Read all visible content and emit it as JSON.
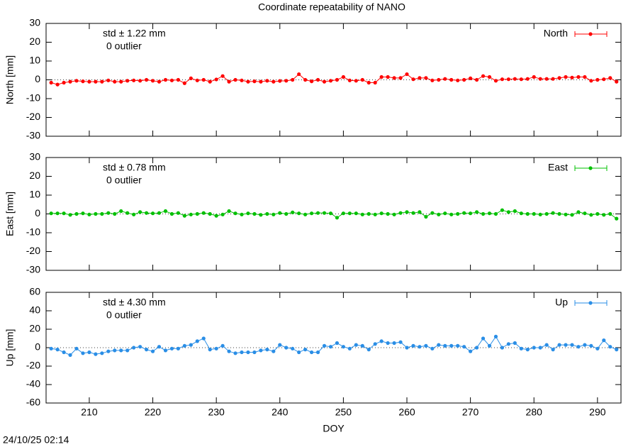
{
  "title": "Coordinate repeatability of NANO",
  "timestamp": "24/10/25 02:14",
  "chart_data": [
    {
      "type": "line",
      "ylabel": "North [mm]",
      "annotations": [
        "std ± 1.22 mm",
        "0 outlier"
      ],
      "x": [
        204,
        205,
        206,
        207,
        208,
        209,
        210,
        211,
        212,
        213,
        214,
        215,
        216,
        217,
        218,
        219,
        220,
        221,
        222,
        223,
        224,
        225,
        226,
        227,
        228,
        229,
        230,
        231,
        232,
        233,
        234,
        235,
        236,
        237,
        238,
        239,
        240,
        241,
        242,
        243,
        244,
        245,
        246,
        247,
        248,
        249,
        250,
        251,
        252,
        253,
        254,
        255,
        256,
        257,
        258,
        259,
        260,
        261,
        262,
        263,
        264,
        265,
        266,
        267,
        268,
        269,
        270,
        271,
        272,
        273,
        274,
        275,
        276,
        277,
        278,
        279,
        280,
        281,
        282,
        283,
        284,
        285,
        286,
        287,
        288,
        289,
        290,
        291,
        292,
        293
      ],
      "series": [
        {
          "name": "North",
          "color": "#ff0000",
          "values": [
            -1.5,
            -2.5,
            -1.5,
            -1,
            -0.5,
            -0.8,
            -1,
            -1,
            -1,
            -0.3,
            -1,
            -1,
            -0.5,
            -0.3,
            -0.5,
            0,
            -0.5,
            -1,
            0,
            -0.3,
            0,
            -1.8,
            0.8,
            -0.3,
            0,
            -1,
            0.2,
            2,
            -1,
            0,
            -0.3,
            -1,
            -0.8,
            -1,
            -0.5,
            -1,
            -0.6,
            -0.5,
            0,
            3,
            0,
            -0.8,
            0,
            -1,
            -0.5,
            0,
            1.5,
            -0.3,
            -0.5,
            0,
            -1.5,
            -1.5,
            1.5,
            1.5,
            1,
            1,
            3,
            0.3,
            1,
            1,
            -0.3,
            0,
            0.5,
            0,
            -0.3,
            0,
            0.8,
            0,
            2,
            1.5,
            -0.5,
            0.3,
            0.3,
            0.5,
            0.3,
            0.5,
            1.5,
            0.5,
            0.5,
            0.5,
            1,
            1.5,
            1.2,
            1.5,
            1.5,
            -0.5,
            0,
            0.3,
            1,
            -1
          ]
        }
      ],
      "xlim": [
        203.2,
        293.7
      ],
      "xticks": [
        210,
        220,
        230,
        240,
        250,
        260,
        270,
        280,
        290
      ],
      "ylim": [
        -30,
        30
      ],
      "yticks": [
        -30,
        -20,
        -10,
        0,
        10,
        20,
        30
      ]
    },
    {
      "type": "line",
      "ylabel": "East [mm]",
      "annotations": [
        "std ± 0.78 mm",
        "0 outlier"
      ],
      "x": [
        204,
        205,
        206,
        207,
        208,
        209,
        210,
        211,
        212,
        213,
        214,
        215,
        216,
        217,
        218,
        219,
        220,
        221,
        222,
        223,
        224,
        225,
        226,
        227,
        228,
        229,
        230,
        231,
        232,
        233,
        234,
        235,
        236,
        237,
        238,
        239,
        240,
        241,
        242,
        243,
        244,
        245,
        246,
        247,
        248,
        249,
        250,
        251,
        252,
        253,
        254,
        255,
        256,
        257,
        258,
        259,
        260,
        261,
        262,
        263,
        264,
        265,
        266,
        267,
        268,
        269,
        270,
        271,
        272,
        273,
        274,
        275,
        276,
        277,
        278,
        279,
        280,
        281,
        282,
        283,
        284,
        285,
        286,
        287,
        288,
        289,
        290,
        291,
        292,
        293
      ],
      "series": [
        {
          "name": "East",
          "color": "#00c000",
          "values": [
            0.3,
            0.3,
            0.3,
            -0.5,
            0,
            0.3,
            -0.3,
            0,
            0,
            0.5,
            0,
            1.5,
            0.5,
            -0.3,
            1,
            0.5,
            0.3,
            0.5,
            1.5,
            0,
            0.5,
            -1,
            -0.3,
            0,
            0.5,
            0,
            -1,
            -0.3,
            1.5,
            0.3,
            -0.3,
            0.3,
            0,
            -0.5,
            0,
            -0.3,
            0.5,
            0,
            0.8,
            0.3,
            -0.3,
            0.3,
            0.5,
            0.5,
            0.3,
            -2,
            0.3,
            0.3,
            0.3,
            -0.3,
            0,
            -0.3,
            0.3,
            0,
            -0.3,
            0.5,
            1,
            0.5,
            1,
            -1.5,
            0.5,
            -0.3,
            0.3,
            -0.3,
            0,
            0.5,
            0.3,
            1,
            0,
            0.3,
            0,
            2,
            1,
            1.5,
            0.3,
            0,
            0,
            -0.3,
            0,
            0.5,
            0,
            -0.3,
            -0.5,
            1,
            0.3,
            -0.5,
            0,
            -0.5,
            0,
            -2.5
          ]
        }
      ],
      "xlim": [
        203.2,
        293.7
      ],
      "xticks": [
        210,
        220,
        230,
        240,
        250,
        260,
        270,
        280,
        290
      ],
      "ylim": [
        -30,
        30
      ],
      "yticks": [
        -30,
        -20,
        -10,
        0,
        10,
        20,
        30
      ]
    },
    {
      "type": "line",
      "ylabel": "Up [mm]",
      "xlabel": "DOY",
      "annotations": [
        "std ± 4.30 mm",
        "0 outlier"
      ],
      "x": [
        204,
        205,
        206,
        207,
        208,
        209,
        210,
        211,
        212,
        213,
        214,
        215,
        216,
        217,
        218,
        219,
        220,
        221,
        222,
        223,
        224,
        225,
        226,
        227,
        228,
        229,
        230,
        231,
        232,
        233,
        234,
        235,
        236,
        237,
        238,
        239,
        240,
        241,
        242,
        243,
        244,
        245,
        246,
        247,
        248,
        249,
        250,
        251,
        252,
        253,
        254,
        255,
        256,
        257,
        258,
        259,
        260,
        261,
        262,
        263,
        264,
        265,
        266,
        267,
        268,
        269,
        270,
        271,
        272,
        273,
        274,
        275,
        276,
        277,
        278,
        279,
        280,
        281,
        282,
        283,
        284,
        285,
        286,
        287,
        288,
        289,
        290,
        291,
        292,
        293
      ],
      "series": [
        {
          "name": "Up",
          "color": "#2a8ee6",
          "values": [
            -1,
            -2,
            -5,
            -8,
            -1,
            -6,
            -5,
            -7,
            -6,
            -4,
            -3,
            -3,
            -3,
            0,
            1,
            -2,
            -4,
            1,
            -3,
            -1,
            -1,
            2,
            3,
            7,
            10,
            -2,
            -1,
            2,
            -4,
            -6,
            -5,
            -5,
            -5,
            -3,
            -2,
            -4,
            3,
            0,
            -1,
            -5,
            -2,
            -5,
            -5,
            2,
            1,
            5,
            1,
            -1,
            3,
            2,
            -2,
            4,
            7,
            5,
            5,
            6,
            0,
            2,
            1,
            2,
            -1,
            3,
            2,
            2,
            2,
            1,
            -4,
            0,
            10,
            2,
            12,
            0,
            4,
            5,
            -1,
            -2,
            0,
            0,
            3,
            -2,
            3,
            3,
            3,
            1,
            3,
            2,
            -1,
            8,
            1,
            -2
          ]
        }
      ],
      "xlim": [
        203.2,
        293.7
      ],
      "xticks": [
        210,
        220,
        230,
        240,
        250,
        260,
        270,
        280,
        290
      ],
      "ylim": [
        -60,
        60
      ],
      "yticks": [
        -60,
        -40,
        -20,
        0,
        20,
        40,
        60
      ]
    }
  ]
}
